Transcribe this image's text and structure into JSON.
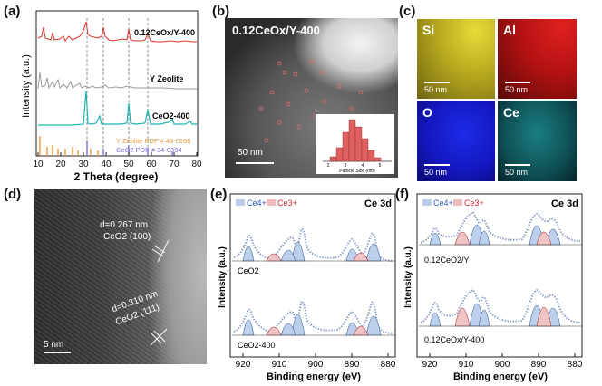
{
  "panel_a": {
    "label": "(a)",
    "ylabel": "Intensity (a.u.)",
    "xlabel": "2 Theta (degree)",
    "xticks": [
      "10",
      "20",
      "30",
      "40",
      "50",
      "60",
      "70",
      "80"
    ],
    "traces": [
      "0.12CeOx/Y-400",
      "Y Zeolite",
      "CeO2-400"
    ],
    "pdf_lines": [
      "Y Zeolite PDF # 43-0168",
      "CeO2 PDF # 34-0394"
    ],
    "colors": {
      "top": "#d9342b",
      "mid": "#9a9a9a",
      "low": "#1fb6b2",
      "pdf1": "#e89a3a",
      "pdf2": "#7b6fd6"
    }
  },
  "panel_b": {
    "label": "(b)",
    "title": "0.12CeOx/Y-400",
    "scale": "50 nm",
    "hist_xlabel": "Particle Size (nm)",
    "hist_xticks": [
      "2",
      "3",
      "4",
      "5"
    ]
  },
  "panel_c": {
    "label": "(c)",
    "maps": [
      {
        "element": "Si",
        "scale": "50 nm",
        "color": "#d8c92b"
      },
      {
        "element": "Al",
        "scale": "50 nm",
        "color": "#c81818"
      },
      {
        "element": "O",
        "scale": "50 nm",
        "color": "#1520d0"
      },
      {
        "element": "Ce",
        "scale": "50 nm",
        "color": "#1aa2a2"
      }
    ]
  },
  "panel_d": {
    "label": "(d)",
    "d1": "d=0.267 nm",
    "d1_plane": "CeO2 (100)",
    "d2": "d=0.310 nm",
    "d2_plane": "CeO2 (111)",
    "scale": "5 nm"
  },
  "panel_e": {
    "label": "(e)",
    "legend_ce4": "Ce4+",
    "legend_ce3": "Ce3+",
    "title": "Ce 3d",
    "ylabel": "Intensity (a.u.)",
    "xlabel": "Binding energy (eV)",
    "xticks": [
      "920",
      "910",
      "900",
      "890",
      "880"
    ],
    "trace_top": "CeO2",
    "trace_bottom": "CeO2-400"
  },
  "panel_f": {
    "label": "(f)",
    "legend_ce4": "Ce4+",
    "legend_ce3": "Ce3+",
    "title": "Ce 3d",
    "ylabel": "Intensity (a.u.)",
    "xlabel": "Binding energy (eV)",
    "xticks": [
      "920",
      "910",
      "900",
      "890",
      "880"
    ],
    "trace_top": "0.12CeO2/Y",
    "trace_bottom": "0.12CeOx/Y-400"
  }
}
